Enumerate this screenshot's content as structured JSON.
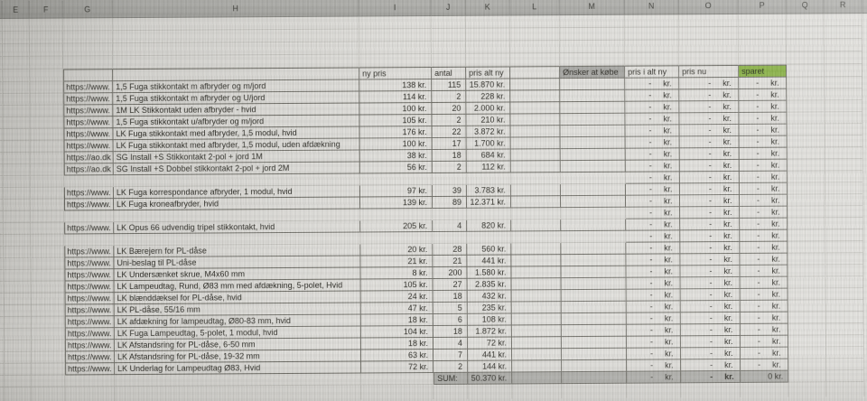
{
  "sheet": {
    "column_letters": [
      "E",
      "F",
      "G",
      "H",
      "I",
      "J",
      "K",
      "L",
      "M",
      "N",
      "O",
      "P",
      "Q",
      "R"
    ]
  },
  "table": {
    "dash": "-",
    "unit": "kr.",
    "headers": {
      "new_price": "ny pris",
      "qty": "antal",
      "total_new": "pris alt ny",
      "want_to_buy": "Ønsker at købe",
      "sum_new": "pris i alt ny",
      "price_now": "pris nu",
      "saved": "sparet"
    },
    "rows": [
      {
        "blank": false,
        "url": "https://www.",
        "name": "1,5 Fuga stikkontakt m afbryder og m/jord",
        "price": "138 kr.",
        "qty": "115",
        "total": "15.870 kr."
      },
      {
        "blank": false,
        "url": "https://www.",
        "name": "1,5 Fuga stikkontakt m afbryder og U/jord",
        "price": "114 kr.",
        "qty": "2",
        "total": "228 kr."
      },
      {
        "blank": false,
        "url": "https://www.",
        "name": "1M LK Stikkontakt uden afbryder - hvid",
        "price": "100 kr.",
        "qty": "20",
        "total": "2.000 kr."
      },
      {
        "blank": false,
        "url": "https://www.",
        "name": "1,5 Fuga stikkontakt u/afbryder og m/jord",
        "price": "105 kr.",
        "qty": "2",
        "total": "210 kr."
      },
      {
        "blank": false,
        "url": "https://www.",
        "name": "LK Fuga stikkontakt med afbryder, 1,5 modul, hvid",
        "price": "176 kr.",
        "qty": "22",
        "total": "3.872 kr."
      },
      {
        "blank": false,
        "url": "https://www.",
        "name": "LK Fuga stikkontakt med afbryder, 1,5 modul, uden afdækning",
        "price": "100 kr.",
        "qty": "17",
        "total": "1.700 kr."
      },
      {
        "blank": false,
        "url": "https://ao.dk",
        "name": "SG Install +S Stikkontakt 2-pol + jord 1M",
        "price": "38 kr.",
        "qty": "18",
        "total": "684 kr."
      },
      {
        "blank": false,
        "url": "https://ao.dk",
        "name": "SG Install +S Dobbel stikkontakt 2-pol + jord 2M",
        "price": "56 kr.",
        "qty": "2",
        "total": "112 kr."
      },
      {
        "blank": true,
        "url": "",
        "name": "",
        "price": "",
        "qty": "",
        "total": ""
      },
      {
        "blank": false,
        "url": "https://www.",
        "name": "LK Fuga korrespondance afbryder, 1 modul, hvid",
        "price": "97 kr.",
        "qty": "39",
        "total": "3.783 kr."
      },
      {
        "blank": false,
        "url": "https://www.",
        "name": "LK Fuga kroneafbryder, hvid",
        "price": "139 kr.",
        "qty": "89",
        "total": "12.371 kr."
      },
      {
        "blank": true,
        "url": "",
        "name": "",
        "price": "",
        "qty": "",
        "total": ""
      },
      {
        "blank": false,
        "url": "https://www.",
        "name": "LK Opus 66 udvendig tripel stikkontakt, hvid",
        "price": "205 kr.",
        "qty": "4",
        "total": "820 kr."
      },
      {
        "blank": true,
        "url": "",
        "name": "",
        "price": "",
        "qty": "",
        "total": ""
      },
      {
        "blank": false,
        "url": "https://www.",
        "name": "LK Bærejern for PL-dåse",
        "price": "20 kr.",
        "qty": "28",
        "total": "560 kr."
      },
      {
        "blank": false,
        "url": "https://www.",
        "name": "Uni-beslag til PL-dåse",
        "price": "21 kr.",
        "qty": "21",
        "total": "441 kr."
      },
      {
        "blank": false,
        "url": "https://www.",
        "name": "LK Undersænket skrue, M4x60 mm",
        "price": "8 kr.",
        "qty": "200",
        "total": "1.580 kr."
      },
      {
        "blank": false,
        "url": "https://www.",
        "name": "LK Lampeudtag, Rund, Ø83 mm med afdækning, 5-polet, Hvid",
        "price": "105 kr.",
        "qty": "27",
        "total": "2.835 kr."
      },
      {
        "blank": false,
        "url": "https://www.",
        "name": "LK blænddæksel for PL-dåse, hvid",
        "price": "24 kr.",
        "qty": "18",
        "total": "432 kr."
      },
      {
        "blank": false,
        "url": "https://www.",
        "name": "LK PL-dåse, 55/16 mm",
        "price": "47 kr.",
        "qty": "5",
        "total": "235 kr."
      },
      {
        "blank": false,
        "url": "https://www.",
        "name": "LK afdækning for lampeudtag, Ø80-83 mm, hvid",
        "price": "18 kr.",
        "qty": "6",
        "total": "108 kr."
      },
      {
        "blank": false,
        "url": "https://www.",
        "name": "LK Fuga Lampeudtag, 5-polet, 1 modul, hvid",
        "price": "104 kr.",
        "qty": "18",
        "total": "1.872 kr."
      },
      {
        "blank": false,
        "url": "https://www.",
        "name": "LK Afstandsring for PL-dåse, 6-50 mm",
        "price": "18 kr.",
        "qty": "4",
        "total": "72 kr."
      },
      {
        "blank": false,
        "url": "https://www.",
        "name": "LK Afstandsring for PL-dåse, 19-32 mm",
        "price": "63 kr.",
        "qty": "7",
        "total": "441 kr."
      },
      {
        "blank": false,
        "url": "https://www.",
        "name": "LK Underlag for Lampeudtag Ø83, Hvid",
        "price": "72 kr.",
        "qty": "2",
        "total": "144 kr."
      }
    ],
    "sum_row": {
      "label": "SUM:",
      "total": "50.370 kr.",
      "saved": "0 kr."
    }
  },
  "colors": {
    "saved_header_bg": "#84ae3e",
    "want_header_bg": "#a3a39f",
    "sum_row_bg": "#b1b1ad"
  }
}
